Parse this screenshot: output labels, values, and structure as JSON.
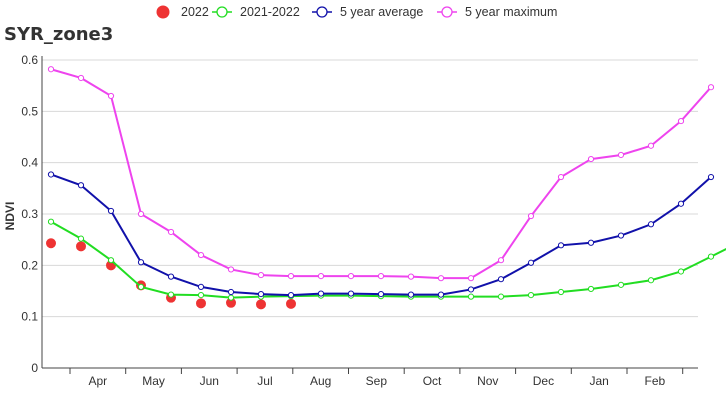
{
  "chart_data": {
    "type": "line",
    "title": "SYR_zone3",
    "ylabel": "NDVI",
    "xlabel": "",
    "ylim": [
      0,
      0.6
    ],
    "yticks": [
      "0",
      "0.1",
      "0.2",
      "0.3",
      "0.4",
      "0.5",
      "0.6"
    ],
    "month_labels": [
      "Apr",
      "May",
      "Jun",
      "Jul",
      "Aug",
      "Sep",
      "Oct",
      "Nov",
      "Dec",
      "Jan",
      "Feb"
    ],
    "legend_position": "top",
    "grid": "horizontal",
    "series": [
      {
        "name": "2022",
        "style": "dots",
        "color": "#ee3333",
        "values": [
          0.243,
          0.237,
          0.2,
          0.161,
          0.137,
          0.126,
          0.127,
          0.124,
          0.125
        ]
      },
      {
        "name": "2021-2022",
        "style": "line",
        "color": "#22dd22",
        "values": [
          0.285,
          0.252,
          0.21,
          0.158,
          0.143,
          0.142,
          0.137,
          0.139,
          0.14,
          0.141,
          0.141,
          0.14,
          0.139,
          0.139,
          0.139,
          0.139,
          0.142,
          0.148,
          0.154,
          0.162,
          0.171,
          0.188,
          0.217,
          0.246
        ]
      },
      {
        "name": "5 year average",
        "style": "line",
        "color": "#1111aa",
        "values": [
          0.377,
          0.356,
          0.306,
          0.206,
          0.178,
          0.158,
          0.148,
          0.144,
          0.142,
          0.145,
          0.145,
          0.144,
          0.143,
          0.143,
          0.153,
          0.173,
          0.205,
          0.239,
          0.244,
          0.258,
          0.28,
          0.32,
          0.372
        ]
      },
      {
        "name": "5 year maximum",
        "style": "line",
        "color": "#ee44ee",
        "values": [
          0.582,
          0.565,
          0.53,
          0.3,
          0.265,
          0.22,
          0.192,
          0.181,
          0.179,
          0.179,
          0.179,
          0.179,
          0.178,
          0.175,
          0.175,
          0.21,
          0.296,
          0.372,
          0.407,
          0.415,
          0.433,
          0.481,
          0.547
        ]
      }
    ]
  }
}
